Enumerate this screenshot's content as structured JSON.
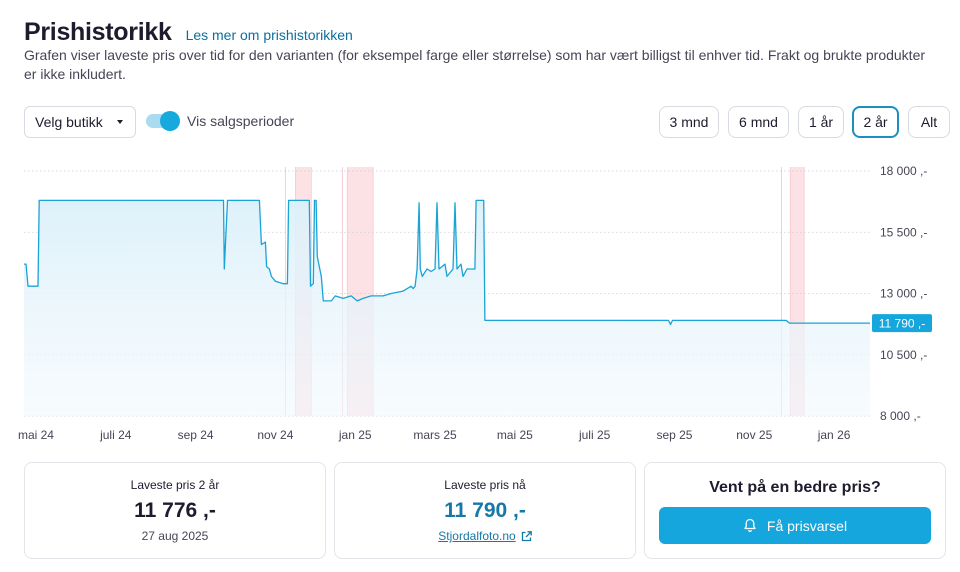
{
  "header": {
    "title": "Prishistorikk",
    "learn_more": "Les mer om prishistorikken",
    "description": "Grafen viser laveste pris over tid for den varianten (for eksempel farge eller størrelse) som har vært billigst til enhver tid. Frakt og brukte produkter er ikke inkludert."
  },
  "controls": {
    "store_select": "Velg butikk",
    "toggle_label": "Vis salgsperioder",
    "toggle_on": true,
    "ranges": [
      {
        "label": "3 mnd",
        "active": false
      },
      {
        "label": "6 mnd",
        "active": false
      },
      {
        "label": "1 år",
        "active": false
      },
      {
        "label": "2 år",
        "active": true
      },
      {
        "label": "Alt",
        "active": false
      }
    ]
  },
  "chart_data": {
    "type": "line",
    "title": "",
    "series": [
      {
        "name": "Laveste pris",
        "color": "#1aa3d6"
      }
    ],
    "x_ticks": [
      {
        "label": "mai 24",
        "t": 0.3
      },
      {
        "label": "juli 24",
        "t": 2.3
      },
      {
        "label": "sep 24",
        "t": 4.3
      },
      {
        "label": "nov 24",
        "t": 6.3
      },
      {
        "label": "jan 25",
        "t": 8.3
      },
      {
        "label": "mars 25",
        "t": 10.3
      },
      {
        "label": "mai 25",
        "t": 12.3
      },
      {
        "label": "juli 25",
        "t": 14.3
      },
      {
        "label": "sep 25",
        "t": 16.3
      },
      {
        "label": "nov 25",
        "t": 18.3
      },
      {
        "label": "jan 26",
        "t": 20.3
      }
    ],
    "y_ticks": [
      {
        "label": "18 000 ,-",
        "v": 18000
      },
      {
        "label": "15 500 ,-",
        "v": 15500
      },
      {
        "label": "13 000 ,-",
        "v": 13000
      },
      {
        "label": "10 500 ,-",
        "v": 10500
      },
      {
        "label": "8 000 ,-",
        "v": 8000
      }
    ],
    "xlim": [
      0,
      21.2
    ],
    "ylim": [
      8000,
      18000
    ],
    "current_label": "11 790 ,-",
    "current_value": 11790,
    "sale_periods": [
      [
        6.8,
        7.2
      ],
      [
        8.1,
        8.75
      ],
      [
        19.2,
        19.55
      ]
    ],
    "sale_markers": [
      6.55,
      7.98,
      18.98
    ],
    "points": [
      [
        0,
        14200
      ],
      [
        0.05,
        14200
      ],
      [
        0.1,
        13300
      ],
      [
        0.35,
        13300
      ],
      [
        0.38,
        16800
      ],
      [
        5.0,
        16800
      ],
      [
        5.02,
        14000
      ],
      [
        5.1,
        16800
      ],
      [
        5.9,
        16800
      ],
      [
        5.95,
        15000
      ],
      [
        6.05,
        15100
      ],
      [
        6.08,
        14100
      ],
      [
        6.15,
        14000
      ],
      [
        6.2,
        13700
      ],
      [
        6.3,
        13500
      ],
      [
        6.5,
        13400
      ],
      [
        6.6,
        13400
      ],
      [
        6.63,
        16800
      ],
      [
        7.15,
        16800
      ],
      [
        7.18,
        13300
      ],
      [
        7.25,
        13400
      ],
      [
        7.28,
        16800
      ],
      [
        7.32,
        16800
      ],
      [
        7.35,
        14500
      ],
      [
        7.45,
        13700
      ],
      [
        7.5,
        12700
      ],
      [
        7.7,
        12700
      ],
      [
        7.8,
        12900
      ],
      [
        8.0,
        12800
      ],
      [
        8.2,
        12900
      ],
      [
        8.35,
        12700
      ],
      [
        8.5,
        12800
      ],
      [
        8.7,
        12900
      ],
      [
        9.0,
        12900
      ],
      [
        9.2,
        13000
      ],
      [
        9.5,
        13100
      ],
      [
        9.7,
        13300
      ],
      [
        9.75,
        13200
      ],
      [
        9.8,
        13300
      ],
      [
        9.85,
        14000
      ],
      [
        9.9,
        16700
      ],
      [
        9.93,
        14000
      ],
      [
        9.98,
        13700
      ],
      [
        10.1,
        14000
      ],
      [
        10.2,
        13900
      ],
      [
        10.3,
        14000
      ],
      [
        10.35,
        16700
      ],
      [
        10.4,
        14000
      ],
      [
        10.55,
        14200
      ],
      [
        10.6,
        13700
      ],
      [
        10.75,
        14000
      ],
      [
        10.8,
        16700
      ],
      [
        10.85,
        14000
      ],
      [
        10.95,
        14200
      ],
      [
        11.0,
        13700
      ],
      [
        11.1,
        14000
      ],
      [
        11.3,
        14000
      ],
      [
        11.33,
        16800
      ],
      [
        11.52,
        16800
      ],
      [
        11.55,
        11900
      ],
      [
        16.15,
        11900
      ],
      [
        16.2,
        11740
      ],
      [
        16.25,
        11900
      ],
      [
        19.1,
        11900
      ],
      [
        19.18,
        11790
      ],
      [
        21.2,
        11790
      ]
    ]
  },
  "cards": {
    "lowest_2y": {
      "label": "Laveste pris 2 år",
      "value": "11 776 ,-",
      "date": "27 aug 2025"
    },
    "lowest_now": {
      "label": "Laveste pris nå",
      "value": "11 790 ,-",
      "store": "Stjordalfoto.no"
    },
    "alert": {
      "heading": "Vent på en bedre pris?",
      "button": "Få prisvarsel"
    }
  },
  "colors": {
    "accent": "#14a6dc",
    "line": "#1aa3d6",
    "sale_band": "#fbd9de",
    "link": "#0a6fa0"
  }
}
